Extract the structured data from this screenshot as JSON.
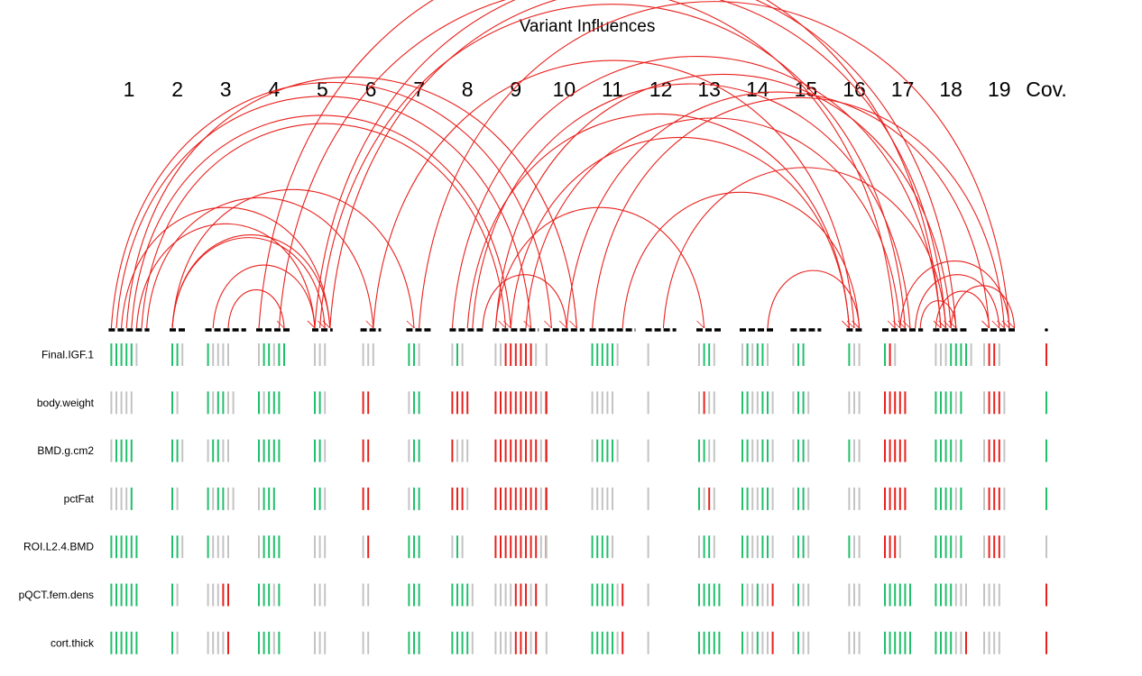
{
  "chart_data": {
    "type": "variant_influence",
    "title": "Variant Influences",
    "chromosomes": [
      "1",
      "2",
      "3",
      "4",
      "5",
      "6",
      "7",
      "8",
      "9",
      "10",
      "11",
      "12",
      "13",
      "14",
      "15",
      "16",
      "17",
      "18",
      "19",
      "Cov."
    ],
    "chromosome_marker_counts": [
      8,
      3,
      8,
      7,
      4,
      4,
      5,
      7,
      9,
      8,
      9,
      6,
      5,
      7,
      6,
      3,
      8,
      7,
      7,
      1
    ],
    "traits": [
      "Final.IGF.1",
      "body.weight",
      "BMD.g.cm2",
      "pctFat",
      "ROI.L2.4.BMD",
      "pQCT.fem.dens",
      "cort.thick"
    ],
    "effect_legend": {
      "g": "positive effect",
      "r": "negative effect",
      "n": "no effect"
    },
    "colors": {
      "positive": "#1fbf6b",
      "negative": "#e8201c",
      "neutral": "#c3c3c3",
      "interaction": "#e8201c",
      "baseline": "#000000"
    },
    "effects": [
      [
        "gggggn",
        "ggn",
        "gnnnn",
        "nggngg",
        "nnn",
        "nnn",
        "ggn",
        "ngn",
        "nnrrrrrrn",
        "n",
        "gggggn",
        "n",
        "nggn",
        "ngnggn",
        "ngg",
        "gnn",
        "grn",
        "nnnggggn",
        "nrrn",
        "r"
      ],
      [
        "nnnnn",
        "gn",
        "gnggnn",
        "gnggg",
        "ggn",
        "rr",
        "ngg",
        "rrrr",
        "rrrrrrrrrnr",
        "r",
        "nnnnn",
        "n",
        "nrnn",
        "ggnnggn",
        "nggn",
        "nnn",
        "rrrrr",
        "ggggng",
        "nrrrn",
        "g"
      ],
      [
        "ngggg",
        "ggn",
        "nggnn",
        "ggggg",
        "ggn",
        "rr",
        "ngg",
        "rnnn",
        "rrrrrrrrrnr",
        "r",
        "nggggn",
        "n",
        "ggnn",
        "ggnnggn",
        "nggn",
        "gnn",
        "rrrrr",
        "ggggng",
        "nrrrn",
        "g"
      ],
      [
        "nnnng",
        "gn",
        "gnggnn",
        "nggg",
        "ggn",
        "rr",
        "ngg",
        "rrrn",
        "rrrrrrrrrnr",
        "r",
        "nnnnn",
        "n",
        "gnrn",
        "ggnnggn",
        "nggn",
        "nnn",
        "rrrrr",
        "ggggng",
        "nrrrn",
        "g"
      ],
      [
        "gggggg",
        "ggn",
        "gnnnn",
        "ngggg",
        "nnn",
        "nr",
        "ggg",
        "ngn",
        "rrrrrrrrrnr",
        "n",
        "ggggn",
        "n",
        "nggn",
        "ggnnggn",
        "nggn",
        "gnn",
        "rrrn",
        "ggggng",
        "nrrrn",
        "n"
      ],
      [
        "gggggg",
        "gn",
        "nnnrr",
        "gggng",
        "nnn",
        "nn",
        "ggg",
        "ggggn",
        "nnnnrrrnr",
        "n",
        "gggggnr",
        "n",
        "ggggg",
        "gnngnnr",
        "ngnn",
        "nnn",
        "gggggg",
        "ggggnnn",
        "nnnn",
        "r"
      ],
      [
        "gggggg",
        "gn",
        "nnnnr",
        "gggng",
        "nnn",
        "nn",
        "ggg",
        "ggggn",
        "nnnnrrrnr",
        "n",
        "gggggnr",
        "n",
        "ggggg",
        "gnngnnr",
        "ngnn",
        "nnn",
        "gggggg",
        "ggggnnr",
        "nnnn",
        "r"
      ]
    ],
    "interactions": [
      [
        "1",
        "10"
      ],
      [
        "1",
        "10"
      ],
      [
        "1",
        "9"
      ],
      [
        "1",
        "9"
      ],
      [
        "1",
        "9"
      ],
      [
        "1",
        "6"
      ],
      [
        "1",
        "5"
      ],
      [
        "1",
        "5"
      ],
      [
        "2",
        "7"
      ],
      [
        "2",
        "5"
      ],
      [
        "2",
        "5"
      ],
      [
        "3",
        "5"
      ],
      [
        "3",
        "4"
      ],
      [
        "4",
        "17"
      ],
      [
        "4",
        "18"
      ],
      [
        "5",
        "17"
      ],
      [
        "5",
        "18"
      ],
      [
        "5",
        "18"
      ],
      [
        "6",
        "16"
      ],
      [
        "7",
        "19"
      ],
      [
        "8",
        "17"
      ],
      [
        "8",
        "18"
      ],
      [
        "8",
        "16"
      ],
      [
        "8",
        "10"
      ],
      [
        "9",
        "13"
      ],
      [
        "9",
        "16"
      ],
      [
        "9",
        "17"
      ],
      [
        "9",
        "18"
      ],
      [
        "10",
        "19"
      ],
      [
        "11",
        "16"
      ],
      [
        "11",
        "19"
      ],
      [
        "12",
        "18"
      ],
      [
        "14",
        "16"
      ],
      [
        "17",
        "19"
      ],
      [
        "17",
        "19"
      ],
      [
        "18",
        "19"
      ],
      [
        "18",
        "19"
      ],
      [
        "17",
        "18"
      ]
    ]
  }
}
